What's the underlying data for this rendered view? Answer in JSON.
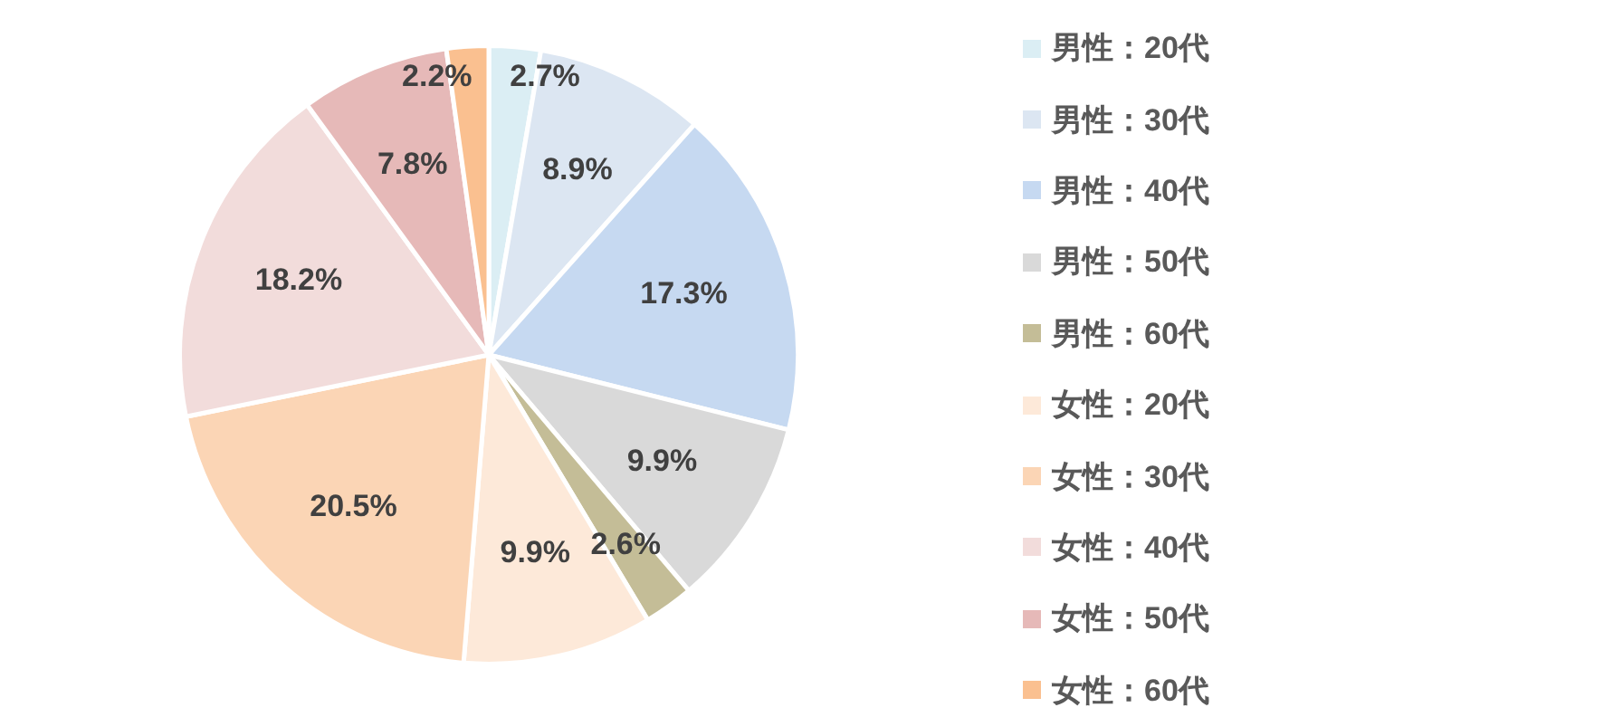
{
  "chart_data": {
    "type": "pie",
    "categories": [
      "男性：20代",
      "男性：30代",
      "男性：40代",
      "男性：50代",
      "男性：60代",
      "女性：20代",
      "女性：30代",
      "女性：40代",
      "女性：50代",
      "女性：60代"
    ],
    "values": [
      2.7,
      8.9,
      17.3,
      9.9,
      2.6,
      9.9,
      20.5,
      18.2,
      7.8,
      2.2
    ],
    "value_labels": [
      "2.7%",
      "8.9%",
      "17.3%",
      "9.9%",
      "2.6%",
      "9.9%",
      "20.5%",
      "18.2%",
      "7.8%",
      "2.2%"
    ],
    "colors": [
      "#dbeef4",
      "#dce6f2",
      "#c6d9f1",
      "#d9d9d9",
      "#c4bd97",
      "#fde9d9",
      "#fbd5b5",
      "#f2dcdb",
      "#e6b9b8",
      "#fac090"
    ],
    "legend": "right"
  }
}
